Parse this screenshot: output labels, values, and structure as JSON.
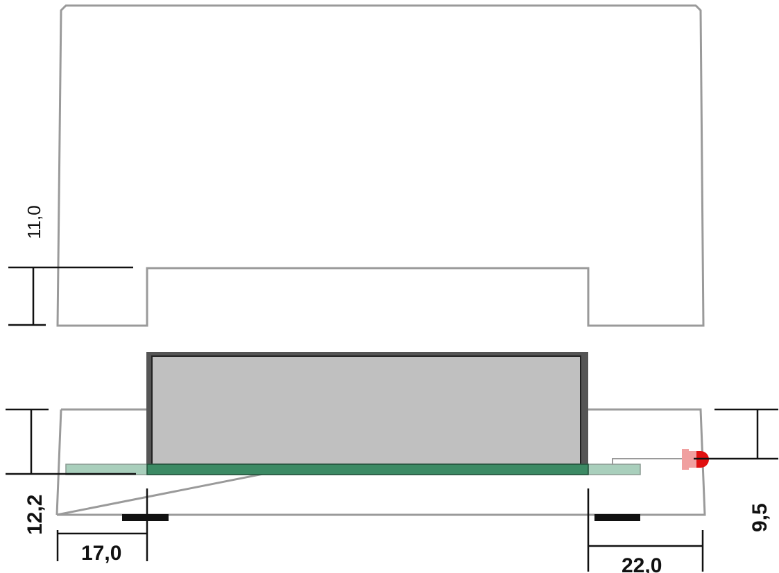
{
  "dimensions": {
    "top_notch_height": "11,0",
    "side_height_left": "12,2",
    "left_offset": "17,0",
    "right_offset": "22,0",
    "led_height": "9,5"
  },
  "colors": {
    "outline": "#9a9a9a",
    "module_fill": "#c0c0c0",
    "module_border": "#555555",
    "pcb_green": "#3c8a64",
    "pcb_light": "#a9cfbc",
    "led_red": "#e01010",
    "led_pink": "#f0a0a0",
    "mount_black": "#111111"
  }
}
